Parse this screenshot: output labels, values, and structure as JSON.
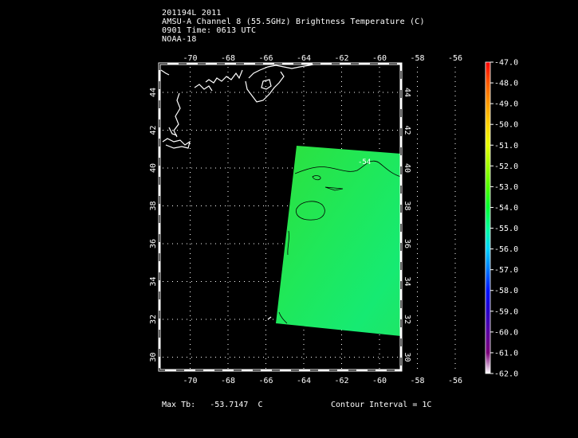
{
  "header": {
    "line1": "201194L 2011",
    "line2": "AMSU-A Channel 8 (55.5GHz) Brightness Temperature (C)",
    "line3": "0901 Time: 0613 UTC",
    "line4": "NOAA-18"
  },
  "footer": {
    "max_label": "Max Tb:",
    "max_value": "-53.7147",
    "max_unit": "C",
    "contour": "Contour Interval = 1C"
  },
  "map": {
    "lon_ticks": [
      "-70",
      "-68",
      "-66",
      "-64",
      "-62",
      "-60",
      "-58",
      "-56"
    ],
    "lat_ticks": [
      "44",
      "42",
      "40",
      "38",
      "36",
      "34",
      "32",
      "30"
    ],
    "contour_label": "-54"
  },
  "colorbar": {
    "labels": [
      "-47.0",
      "-48.0",
      "-49.0",
      "-50.0",
      "-51.0",
      "-52.0",
      "-53.0",
      "-54.0",
      "-55.0",
      "-56.0",
      "-57.0",
      "-58.0",
      "-59.0",
      "-60.0",
      "-61.0",
      "-62.0"
    ],
    "colors": [
      "#ff0000",
      "#ff5a00",
      "#ff9a00",
      "#ffd200",
      "#e6ff00",
      "#a0ff00",
      "#50ff00",
      "#00ff32",
      "#00ff9a",
      "#00d2ff",
      "#0078ff",
      "#0014ff",
      "#2800c8",
      "#5a00a0",
      "#7a0078",
      "#ffffff"
    ]
  }
}
